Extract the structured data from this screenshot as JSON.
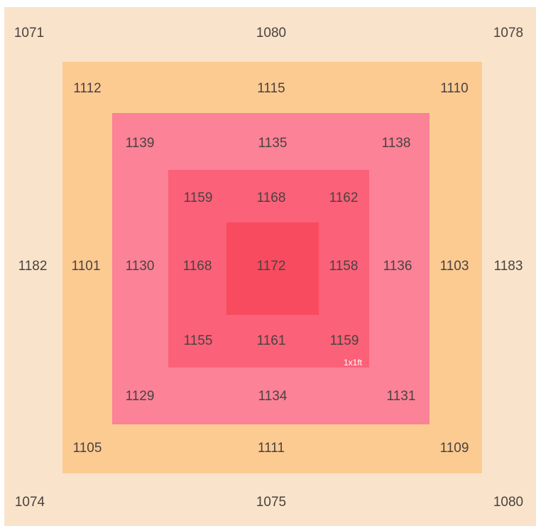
{
  "colors": {
    "ring_outer": "#f9e4cb",
    "ring_2": "#fccb92",
    "ring_3": "#fb8297",
    "ring_4": "#fb6179",
    "center": "#f84b5f",
    "note": "#ffffff"
  },
  "grid": {
    "rows": [
      [
        "1071",
        "",
        "",
        "1080",
        "",
        "",
        "1078"
      ],
      [
        "",
        "1112",
        "",
        "1115",
        "",
        "1110",
        ""
      ],
      [
        "",
        "",
        "1139",
        "1135",
        "1138",
        "",
        ""
      ],
      [
        "",
        "",
        "1159",
        "1168",
        "1162",
        "",
        ""
      ],
      [
        "1182",
        "1101",
        "1130",
        "1168",
        "1172",
        "1158",
        "1136",
        "1103",
        "1183"
      ],
      [
        "",
        "",
        "1155",
        "1161",
        "1159",
        "",
        ""
      ],
      [
        "",
        "",
        "1129",
        "1134",
        "1131",
        "",
        ""
      ],
      [
        "",
        "1105",
        "",
        "1111",
        "",
        "1109",
        ""
      ],
      [
        "1074",
        "",
        "",
        "1075",
        "",
        "",
        "1080"
      ]
    ]
  },
  "values": {
    "outer": {
      "top_left": "1071",
      "top": "1080",
      "top_right": "1078",
      "left": "1182",
      "right": "1183",
      "bottom_left": "1074",
      "bottom": "1075",
      "bottom_right": "1080"
    },
    "ring2": {
      "top_left": "1112",
      "top": "1115",
      "top_right": "1110",
      "left": "1101",
      "right": "1103",
      "bottom_left": "1105",
      "bottom": "1111",
      "bottom_right": "1109"
    },
    "ring3": {
      "top_left": "1139",
      "top": "1135",
      "top_right": "1138",
      "left": "1130",
      "right": "1136",
      "bottom_left": "1129",
      "bottom": "1134",
      "bottom_right": "1131"
    },
    "ring4": {
      "top_left": "1159",
      "top": "1168",
      "top_right": "1162",
      "left": "1168",
      "right": "1158",
      "bottom_left": "1155",
      "bottom": "1161",
      "bottom_right": "1159"
    },
    "center": "1172"
  },
  "note": "1x1ft"
}
